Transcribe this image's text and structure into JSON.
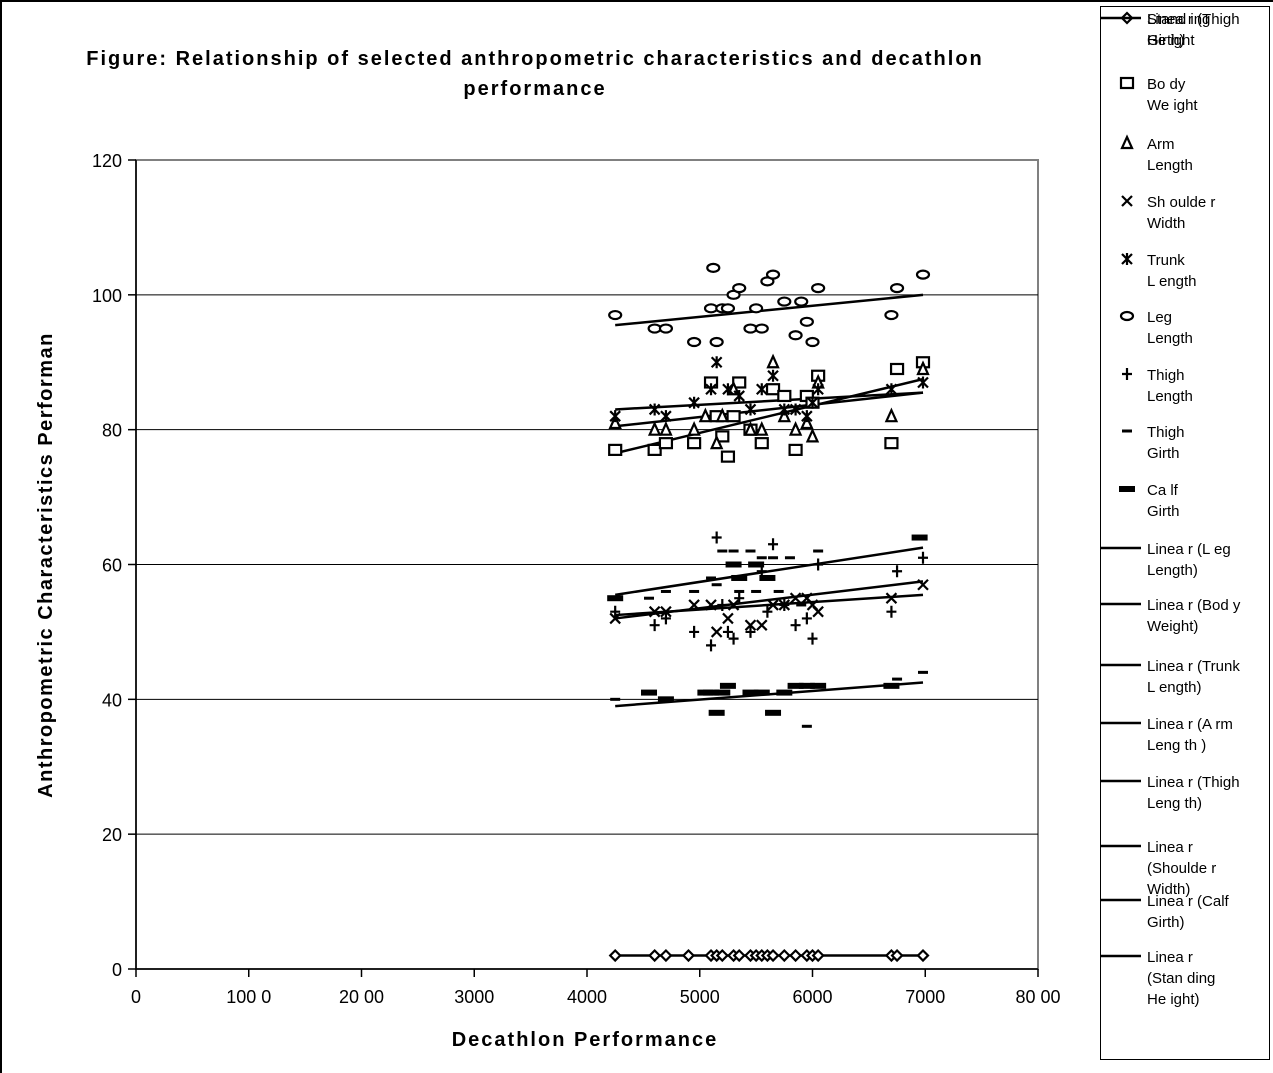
{
  "chart_data": {
    "type": "scatter",
    "title": "Figure: Relationship of selected anthropometric characteristics and decathlon performance",
    "xlabel": "Decathlon Performance",
    "ylabel": "Anthropometric Characteristics Performan",
    "xlim": [
      0,
      8000
    ],
    "ylim": [
      0,
      120
    ],
    "xticks": [
      0,
      1000,
      2000,
      3000,
      4000,
      5000,
      6000,
      7000,
      8000
    ],
    "xtick_labels": [
      "0",
      "100 0",
      "20 00",
      "3000",
      "4000",
      "5000",
      "6000",
      "7000",
      "80 00"
    ],
    "yticks": [
      0,
      20,
      40,
      60,
      80,
      100,
      120
    ],
    "ytick_labels": [
      "0",
      "20",
      "40",
      "60",
      "80",
      "100",
      "120"
    ],
    "grid": "horizontal",
    "legend_position": "right",
    "series": [
      {
        "name": "Stand ing\nHe ight",
        "marker": "diamond",
        "x": [
          4250,
          4600,
          4700,
          4900,
          5100,
          5150,
          5200,
          5300,
          5350,
          5450,
          5500,
          5550,
          5600,
          5650,
          5750,
          5850,
          5950,
          6000,
          6050,
          6700,
          6750,
          6980
        ],
        "y": [
          2,
          2,
          2,
          2,
          2,
          2,
          2,
          2,
          2,
          2,
          2,
          2,
          2,
          2,
          2,
          2,
          2,
          2,
          2,
          2,
          2,
          2
        ],
        "trend": [
          [
            4250,
            2
          ],
          [
            6980,
            2
          ]
        ]
      },
      {
        "name": "Bo dy\nWe ight",
        "marker": "square",
        "x": [
          4250,
          4600,
          4700,
          4950,
          5100,
          5150,
          5200,
          5250,
          5300,
          5350,
          5450,
          5550,
          5650,
          5750,
          5850,
          5950,
          6000,
          6050,
          6700,
          6750,
          6980
        ],
        "y": [
          77,
          77,
          78,
          78,
          87,
          82,
          79,
          76,
          82,
          87,
          80,
          78,
          86,
          85,
          77,
          85,
          84,
          88,
          78,
          89,
          90
        ],
        "trend": [
          [
            4250,
            76.5
          ],
          [
            6980,
            87.5
          ]
        ]
      },
      {
        "name": "Arm\nLength",
        "marker": "triangle",
        "x": [
          4250,
          4600,
          4700,
          4950,
          5050,
          5150,
          5200,
          5300,
          5450,
          5550,
          5650,
          5750,
          5850,
          5950,
          6000,
          6050,
          6700,
          6980
        ],
        "y": [
          81,
          80,
          80,
          80,
          82,
          78,
          82,
          86,
          80,
          80,
          90,
          82,
          80,
          81,
          79,
          87,
          82,
          89
        ],
        "trend": [
          [
            4250,
            80.5
          ],
          [
            6980,
            85.5
          ]
        ]
      },
      {
        "name": "Sh oulde r\nWidth",
        "marker": "x",
        "x": [
          4250,
          4600,
          4700,
          4950,
          5100,
          5150,
          5250,
          5300,
          5450,
          5550,
          5650,
          5750,
          5850,
          5950,
          6000,
          6050,
          6700,
          6980
        ],
        "y": [
          52,
          53,
          53,
          54,
          54,
          50,
          52,
          54,
          51,
          51,
          54,
          54,
          55,
          55,
          54,
          53,
          55,
          57
        ],
        "trend": [
          [
            4250,
            52
          ],
          [
            6980,
            57.5
          ]
        ]
      },
      {
        "name": "Trunk\n L ength",
        "marker": "asterisk",
        "x": [
          4250,
          4600,
          4700,
          4950,
          5100,
          5150,
          5250,
          5350,
          5450,
          5550,
          5650,
          5750,
          5850,
          5950,
          6000,
          6050,
          6700,
          6980
        ],
        "y": [
          82,
          83,
          82,
          84,
          86,
          90,
          86,
          85,
          83,
          86,
          88,
          83,
          83,
          82,
          84,
          86,
          86,
          87
        ],
        "trend": [
          [
            4250,
            83
          ],
          [
            6980,
            85.5
          ]
        ]
      },
      {
        "name": "Leg\nLength",
        "marker": "ellipse",
        "x": [
          4250,
          4600,
          4700,
          4950,
          5100,
          5120,
          5150,
          5200,
          5250,
          5300,
          5350,
          5450,
          5500,
          5550,
          5600,
          5650,
          5750,
          5850,
          5900,
          5950,
          6000,
          6050,
          6700,
          6750,
          6980
        ],
        "y": [
          97,
          95,
          95,
          93,
          98,
          104,
          93,
          98,
          98,
          100,
          101,
          95,
          98,
          95,
          102,
          103,
          99,
          94,
          99,
          96,
          93,
          101,
          97,
          101,
          103
        ],
        "trend": [
          [
            4250,
            95.5
          ],
          [
            6980,
            100
          ]
        ]
      },
      {
        "name": "Thigh\nLength",
        "marker": "plus",
        "x": [
          4250,
          4600,
          4700,
          4950,
          5100,
          5150,
          5200,
          5250,
          5300,
          5350,
          5450,
          5550,
          5600,
          5650,
          5750,
          5850,
          5950,
          6000,
          6050,
          6700,
          6750,
          6980
        ],
        "y": [
          53,
          51,
          52,
          50,
          48,
          64,
          54,
          50,
          49,
          55,
          50,
          59,
          53,
          63,
          54,
          51,
          52,
          49,
          60,
          53,
          59,
          61
        ],
        "trend": [
          [
            4250,
            52.5
          ],
          [
            6980,
            55.5
          ]
        ]
      },
      {
        "name": "Thigh\nGirth",
        "marker": "smalldash",
        "x": [
          4250,
          4550,
          4700,
          4950,
          5100,
          5150,
          5200,
          5300,
          5350,
          5450,
          5500,
          5550,
          5650,
          5700,
          5800,
          5900,
          5950,
          6050,
          6700,
          6750,
          6980
        ],
        "y": [
          40,
          55,
          56,
          56,
          58,
          57,
          62,
          62,
          56,
          62,
          56,
          61,
          61,
          56,
          61,
          54,
          36,
          62,
          42,
          43,
          44
        ],
        "trend": [
          [
            4250,
            55.5
          ],
          [
            6980,
            62.5
          ]
        ]
      },
      {
        "name": "Ca lf\nGirth",
        "marker": "bigdash",
        "x": [
          4250,
          4550,
          4700,
          5050,
          5100,
          5150,
          5200,
          5250,
          5300,
          5350,
          5450,
          5500,
          5550,
          5600,
          5650,
          5750,
          5850,
          5950,
          6050,
          6700,
          6950
        ],
        "y": [
          55,
          41,
          40,
          41,
          41,
          38,
          41,
          42,
          60,
          58,
          41,
          60,
          41,
          58,
          38,
          41,
          42,
          42,
          42,
          42,
          64
        ],
        "trend": [
          [
            4250,
            39
          ],
          [
            6980,
            42.5
          ]
        ]
      }
    ],
    "trendlines": [
      "Linea r (L eg\nLength)",
      "Linea r (Bod y\nWeight)",
      "Linea r (Trunk\n L ength)",
      "Linea r (A rm\nLeng th )",
      "Linea r (Thigh\nLeng th)",
      "Linea r\n(Shoulde r\nWidth)",
      "Linea r (Calf\nGirth)",
      "Linea r\n(Stan ding\nHe ight)",
      "Linea r (Thigh\nGirth)"
    ]
  }
}
